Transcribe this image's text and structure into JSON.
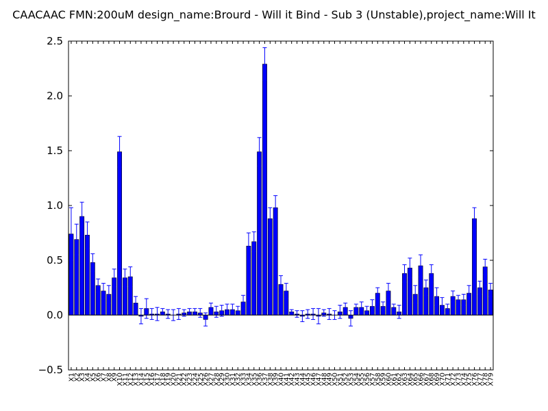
{
  "chart_data": {
    "type": "bar",
    "title": "CAACAAC  FMN:200uM  design_name:Brourd - Will it Bind - Sub 3 (Unstable),project_name:Will It",
    "categories": [
      "X1",
      "X2",
      "X3",
      "X4",
      "X5",
      "X6",
      "X7",
      "X8",
      "X9",
      "X10",
      "X11",
      "X12",
      "X13",
      "X14",
      "X15",
      "X16",
      "X17",
      "X18",
      "X19",
      "X20",
      "X21",
      "X22",
      "X23",
      "X24",
      "X25",
      "X26",
      "X27",
      "X28",
      "X29",
      "X30",
      "X31",
      "X32",
      "X33",
      "X34",
      "X35",
      "X36",
      "X37",
      "X38",
      "X39",
      "X40",
      "X41",
      "X42",
      "X43",
      "X44",
      "X45",
      "X46",
      "X47",
      "X48",
      "X49",
      "X50",
      "X51",
      "X52",
      "X53",
      "X54",
      "X55",
      "X56",
      "X57",
      "X58",
      "X59",
      "X60",
      "X61",
      "X62",
      "X63",
      "X64",
      "X65",
      "X66",
      "X67",
      "X68",
      "X69",
      "X70",
      "X71",
      "X72",
      "X73",
      "X74",
      "X75",
      "X76",
      "X77",
      "X78",
      "X79"
    ],
    "values": [
      0.74,
      0.69,
      0.9,
      0.73,
      0.48,
      0.27,
      0.22,
      0.19,
      0.34,
      1.49,
      0.34,
      0.35,
      0.11,
      -0.01,
      0.06,
      0.01,
      0.01,
      0.03,
      0.01,
      0.0,
      0.01,
      0.02,
      0.03,
      0.03,
      0.02,
      -0.04,
      0.07,
      0.03,
      0.04,
      0.05,
      0.05,
      0.04,
      0.12,
      0.63,
      0.67,
      1.49,
      2.29,
      0.88,
      0.98,
      0.28,
      0.22,
      0.03,
      0.01,
      -0.01,
      0.01,
      0.01,
      -0.01,
      0.02,
      0.01,
      0.0,
      0.03,
      0.07,
      -0.03,
      0.07,
      0.07,
      0.04,
      0.08,
      0.2,
      0.08,
      0.22,
      0.07,
      0.03,
      0.38,
      0.43,
      0.19,
      0.45,
      0.25,
      0.38,
      0.17,
      0.09,
      0.06,
      0.17,
      0.14,
      0.14,
      0.2,
      0.88,
      0.25,
      0.44,
      0.23
    ],
    "errors": [
      0.24,
      0.14,
      0.13,
      0.12,
      0.08,
      0.06,
      0.07,
      0.08,
      0.08,
      0.14,
      0.08,
      0.09,
      0.06,
      0.07,
      0.09,
      0.05,
      0.06,
      0.03,
      0.04,
      0.05,
      0.05,
      0.03,
      0.03,
      0.03,
      0.04,
      0.06,
      0.04,
      0.05,
      0.05,
      0.05,
      0.05,
      0.04,
      0.06,
      0.12,
      0.09,
      0.13,
      0.15,
      0.1,
      0.11,
      0.08,
      0.07,
      0.02,
      0.03,
      0.05,
      0.04,
      0.05,
      0.07,
      0.03,
      0.05,
      0.04,
      0.06,
      0.04,
      0.07,
      0.03,
      0.05,
      0.04,
      0.06,
      0.05,
      0.04,
      0.07,
      0.03,
      0.06,
      0.08,
      0.09,
      0.08,
      0.1,
      0.07,
      0.08,
      0.08,
      0.07,
      0.04,
      0.05,
      0.04,
      0.05,
      0.07,
      0.1,
      0.06,
      0.07,
      0.06
    ],
    "color": "#0000ff",
    "error_color": "#0000ff",
    "ylim": [
      -0.5,
      2.5
    ],
    "yticks": [
      {
        "value": -0.5,
        "label": "−0.5"
      },
      {
        "value": 0,
        "label": "0.0"
      },
      0.5,
      {
        "value": 1,
        "label": "1.0"
      },
      1.5,
      {
        "value": 2,
        "label": "2.0"
      },
      2.5
    ],
    "grid": false
  }
}
